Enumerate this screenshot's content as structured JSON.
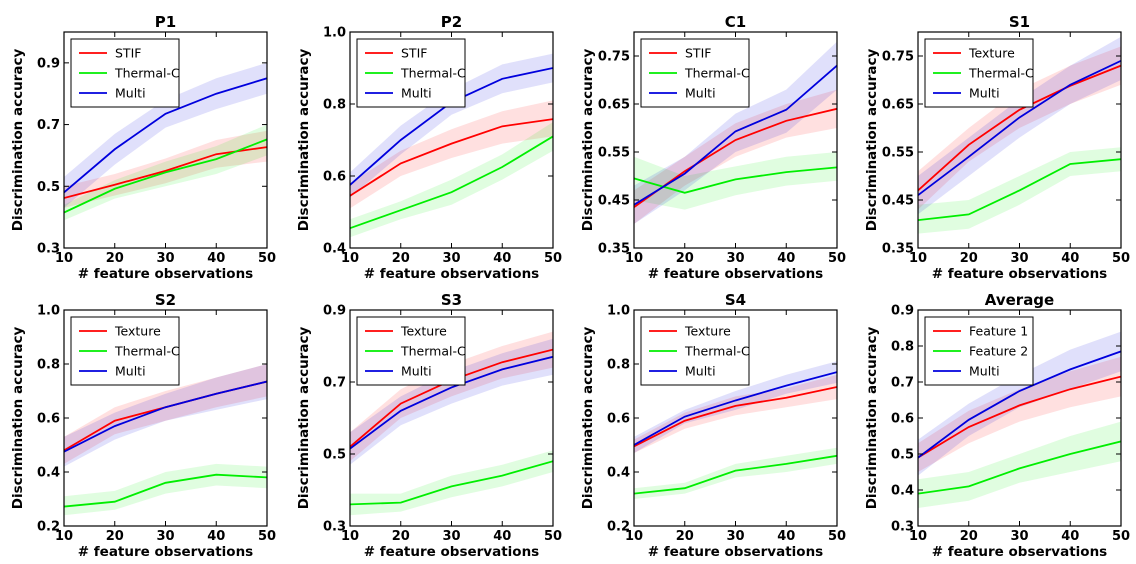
{
  "chart_data": [
    {
      "type": "line",
      "title": "P1",
      "xlabel": "# feature observations",
      "ylabel": "Discrimination accuracy",
      "x": [
        10,
        20,
        30,
        40,
        50
      ],
      "xlim": [
        10,
        50
      ],
      "ylim": [
        0.3,
        1.0
      ],
      "yticks": [
        "0.3",
        "0.5",
        "0.7",
        "0.9"
      ],
      "xticks": [
        "10",
        "20",
        "30",
        "40",
        "50"
      ],
      "legend_position": "top-left",
      "series": [
        {
          "name": "STIF",
          "color": "#ff0000",
          "values": [
            0.462,
            0.505,
            0.55,
            0.604,
            0.627
          ],
          "lower": [
            0.43,
            0.47,
            0.51,
            0.56,
            0.58
          ],
          "upper": [
            0.5,
            0.54,
            0.59,
            0.65,
            0.68
          ]
        },
        {
          "name": "Thermal-C",
          "color": "#00ee00",
          "values": [
            0.415,
            0.492,
            0.545,
            0.588,
            0.652
          ],
          "lower": [
            0.39,
            0.46,
            0.5,
            0.54,
            0.6
          ],
          "upper": [
            0.44,
            0.52,
            0.58,
            0.63,
            0.7
          ]
        },
        {
          "name": "Multi",
          "color": "#0000dd",
          "values": [
            0.48,
            0.62,
            0.735,
            0.8,
            0.85
          ],
          "lower": [
            0.43,
            0.57,
            0.69,
            0.75,
            0.8
          ],
          "upper": [
            0.53,
            0.67,
            0.78,
            0.85,
            0.9
          ]
        }
      ]
    },
    {
      "type": "line",
      "title": "P2",
      "xlabel": "# feature observations",
      "ylabel": "Discrimination accuracy",
      "x": [
        10,
        20,
        30,
        40,
        50
      ],
      "xlim": [
        10,
        50
      ],
      "ylim": [
        0.4,
        1.0
      ],
      "yticks": [
        "0.4",
        "0.6",
        "0.8",
        "1.0"
      ],
      "xticks": [
        "10",
        "20",
        "30",
        "40",
        "50"
      ],
      "legend_position": "top-left",
      "series": [
        {
          "name": "STIF",
          "color": "#ff0000",
          "values": [
            0.545,
            0.635,
            0.69,
            0.738,
            0.758
          ],
          "lower": [
            0.51,
            0.6,
            0.65,
            0.69,
            0.71
          ],
          "upper": [
            0.58,
            0.67,
            0.73,
            0.78,
            0.81
          ]
        },
        {
          "name": "Thermal-C",
          "color": "#00ee00",
          "values": [
            0.455,
            0.505,
            0.555,
            0.625,
            0.71
          ],
          "lower": [
            0.43,
            0.48,
            0.52,
            0.59,
            0.67
          ],
          "upper": [
            0.48,
            0.53,
            0.59,
            0.66,
            0.75
          ]
        },
        {
          "name": "Multi",
          "color": "#0000dd",
          "values": [
            0.575,
            0.7,
            0.805,
            0.87,
            0.9
          ],
          "lower": [
            0.54,
            0.66,
            0.77,
            0.83,
            0.86
          ],
          "upper": [
            0.61,
            0.74,
            0.84,
            0.91,
            0.94
          ]
        }
      ]
    },
    {
      "type": "line",
      "title": "C1",
      "xlabel": "# feature observations",
      "ylabel": "Discrimination accuracy",
      "x": [
        10,
        20,
        30,
        40,
        50
      ],
      "xlim": [
        10,
        50
      ],
      "ylim": [
        0.35,
        0.8
      ],
      "yticks": [
        "0.35",
        "0.45",
        "0.55",
        "0.65",
        "0.75"
      ],
      "xticks": [
        "10",
        "20",
        "30",
        "40",
        "50"
      ],
      "legend_position": "top-left",
      "series": [
        {
          "name": "STIF",
          "color": "#ff0000",
          "values": [
            0.435,
            0.51,
            0.575,
            0.615,
            0.64
          ],
          "lower": [
            0.4,
            0.48,
            0.54,
            0.58,
            0.6
          ],
          "upper": [
            0.47,
            0.54,
            0.61,
            0.65,
            0.68
          ]
        },
        {
          "name": "Thermal-C",
          "color": "#00ee00",
          "values": [
            0.495,
            0.465,
            0.493,
            0.508,
            0.518
          ],
          "lower": [
            0.45,
            0.43,
            0.46,
            0.48,
            0.49
          ],
          "upper": [
            0.54,
            0.5,
            0.52,
            0.54,
            0.55
          ]
        },
        {
          "name": "Multi",
          "color": "#0000dd",
          "values": [
            0.44,
            0.505,
            0.593,
            0.638,
            0.73
          ],
          "lower": [
            0.4,
            0.47,
            0.55,
            0.59,
            0.68
          ],
          "upper": [
            0.48,
            0.54,
            0.63,
            0.68,
            0.78
          ]
        }
      ]
    },
    {
      "type": "line",
      "title": "S1",
      "xlabel": "# feature observations",
      "ylabel": "Discrimination accuracy",
      "x": [
        10,
        20,
        30,
        40,
        50
      ],
      "xlim": [
        10,
        50
      ],
      "ylim": [
        0.35,
        0.8
      ],
      "yticks": [
        "0.35",
        "0.45",
        "0.55",
        "0.65",
        "0.75"
      ],
      "xticks": [
        "10",
        "20",
        "30",
        "40",
        "50"
      ],
      "legend_position": "top-left",
      "series": [
        {
          "name": "Texture",
          "color": "#ff0000",
          "values": [
            0.47,
            0.565,
            0.638,
            0.688,
            0.73
          ],
          "lower": [
            0.43,
            0.53,
            0.6,
            0.65,
            0.69
          ],
          "upper": [
            0.51,
            0.6,
            0.68,
            0.73,
            0.77
          ]
        },
        {
          "name": "Thermal-C",
          "color": "#00ee00",
          "values": [
            0.408,
            0.42,
            0.47,
            0.525,
            0.535
          ],
          "lower": [
            0.38,
            0.39,
            0.44,
            0.5,
            0.51
          ],
          "upper": [
            0.44,
            0.45,
            0.5,
            0.55,
            0.56
          ]
        },
        {
          "name": "Multi",
          "color": "#0000dd",
          "values": [
            0.46,
            0.54,
            0.622,
            0.69,
            0.74
          ],
          "lower": [
            0.42,
            0.5,
            0.58,
            0.65,
            0.7
          ],
          "upper": [
            0.5,
            0.58,
            0.66,
            0.73,
            0.79
          ]
        }
      ]
    },
    {
      "type": "line",
      "title": "S2",
      "xlabel": "# feature observations",
      "ylabel": "Discrimination accuracy",
      "x": [
        10,
        20,
        30,
        40,
        50
      ],
      "xlim": [
        10,
        50
      ],
      "ylim": [
        0.2,
        1.0
      ],
      "yticks": [
        "0.2",
        "0.4",
        "0.6",
        "0.8",
        "1.0"
      ],
      "xticks": [
        "10",
        "20",
        "30",
        "40",
        "50"
      ],
      "legend_position": "top-left",
      "series": [
        {
          "name": "Texture",
          "color": "#ff0000",
          "values": [
            0.48,
            0.59,
            0.64,
            0.69,
            0.735
          ],
          "lower": [
            0.43,
            0.54,
            0.59,
            0.64,
            0.68
          ],
          "upper": [
            0.53,
            0.64,
            0.7,
            0.75,
            0.8
          ]
        },
        {
          "name": "Thermal-C",
          "color": "#00ee00",
          "values": [
            0.272,
            0.29,
            0.36,
            0.39,
            0.38
          ],
          "lower": [
            0.24,
            0.26,
            0.32,
            0.35,
            0.34
          ],
          "upper": [
            0.31,
            0.33,
            0.4,
            0.43,
            0.42
          ]
        },
        {
          "name": "Multi",
          "color": "#0000dd",
          "values": [
            0.475,
            0.57,
            0.64,
            0.69,
            0.735
          ],
          "lower": [
            0.42,
            0.52,
            0.59,
            0.63,
            0.67
          ],
          "upper": [
            0.53,
            0.62,
            0.69,
            0.75,
            0.8
          ]
        }
      ]
    },
    {
      "type": "line",
      "title": "S3",
      "xlabel": "# feature observations",
      "ylabel": "Discrimination accuracy",
      "x": [
        10,
        20,
        30,
        40,
        50
      ],
      "xlim": [
        10,
        50
      ],
      "ylim": [
        0.3,
        0.9
      ],
      "yticks": [
        "0.3",
        "0.5",
        "0.7",
        "0.9"
      ],
      "xticks": [
        "10",
        "20",
        "30",
        "40",
        "50"
      ],
      "legend_position": "top-left",
      "series": [
        {
          "name": "Texture",
          "color": "#ff0000",
          "values": [
            0.52,
            0.64,
            0.705,
            0.755,
            0.79
          ],
          "lower": [
            0.48,
            0.6,
            0.66,
            0.71,
            0.74
          ],
          "upper": [
            0.56,
            0.68,
            0.75,
            0.8,
            0.84
          ]
        },
        {
          "name": "Thermal-C",
          "color": "#00ee00",
          "values": [
            0.36,
            0.365,
            0.41,
            0.44,
            0.48
          ],
          "lower": [
            0.33,
            0.34,
            0.38,
            0.41,
            0.45
          ],
          "upper": [
            0.39,
            0.39,
            0.44,
            0.47,
            0.51
          ]
        },
        {
          "name": "Multi",
          "color": "#0000dd",
          "values": [
            0.515,
            0.62,
            0.685,
            0.735,
            0.77
          ],
          "lower": [
            0.47,
            0.58,
            0.64,
            0.69,
            0.72
          ],
          "upper": [
            0.56,
            0.66,
            0.73,
            0.78,
            0.82
          ]
        }
      ]
    },
    {
      "type": "line",
      "title": "S4",
      "xlabel": "# feature observations",
      "ylabel": "Discrimination accuracy",
      "x": [
        10,
        20,
        30,
        40,
        50
      ],
      "xlim": [
        10,
        50
      ],
      "ylim": [
        0.2,
        1.0
      ],
      "yticks": [
        "0.2",
        "0.4",
        "0.6",
        "0.8",
        "1.0"
      ],
      "xticks": [
        "10",
        "20",
        "30",
        "40",
        "50"
      ],
      "legend_position": "top-left",
      "series": [
        {
          "name": "Texture",
          "color": "#ff0000",
          "values": [
            0.495,
            0.59,
            0.645,
            0.675,
            0.715
          ],
          "lower": [
            0.47,
            0.56,
            0.61,
            0.64,
            0.67
          ],
          "upper": [
            0.52,
            0.62,
            0.68,
            0.71,
            0.76
          ]
        },
        {
          "name": "Thermal-C",
          "color": "#00ee00",
          "values": [
            0.32,
            0.34,
            0.405,
            0.43,
            0.46
          ],
          "lower": [
            0.3,
            0.32,
            0.38,
            0.4,
            0.43
          ],
          "upper": [
            0.34,
            0.36,
            0.43,
            0.46,
            0.49
          ]
        },
        {
          "name": "Multi",
          "color": "#0000dd",
          "values": [
            0.5,
            0.605,
            0.665,
            0.72,
            0.77
          ],
          "lower": [
            0.47,
            0.58,
            0.63,
            0.69,
            0.73
          ],
          "upper": [
            0.53,
            0.63,
            0.7,
            0.76,
            0.81
          ]
        }
      ]
    },
    {
      "type": "line",
      "title": "Average",
      "xlabel": "# feature observations",
      "ylabel": "Discrimination accuracy",
      "x": [
        10,
        20,
        30,
        40,
        50
      ],
      "xlim": [
        10,
        50
      ],
      "ylim": [
        0.3,
        0.9
      ],
      "yticks": [
        "0.3",
        "0.4",
        "0.5",
        "0.6",
        "0.7",
        "0.8",
        "0.9"
      ],
      "xticks": [
        "10",
        "20",
        "30",
        "40",
        "50"
      ],
      "legend_position": "top-left",
      "series": [
        {
          "name": "Feature 1",
          "color": "#ff0000",
          "values": [
            0.49,
            0.575,
            0.635,
            0.68,
            0.715
          ],
          "lower": [
            0.45,
            0.53,
            0.59,
            0.63,
            0.66
          ],
          "upper": [
            0.53,
            0.62,
            0.68,
            0.73,
            0.77
          ]
        },
        {
          "name": "Feature 2",
          "color": "#00ee00",
          "values": [
            0.39,
            0.41,
            0.46,
            0.5,
            0.535
          ],
          "lower": [
            0.35,
            0.37,
            0.42,
            0.45,
            0.48
          ],
          "upper": [
            0.43,
            0.45,
            0.5,
            0.55,
            0.59
          ]
        },
        {
          "name": "Multi",
          "color": "#0000dd",
          "values": [
            0.49,
            0.595,
            0.675,
            0.735,
            0.785
          ],
          "lower": [
            0.44,
            0.55,
            0.63,
            0.68,
            0.73
          ],
          "upper": [
            0.54,
            0.64,
            0.72,
            0.79,
            0.84
          ]
        }
      ]
    }
  ]
}
